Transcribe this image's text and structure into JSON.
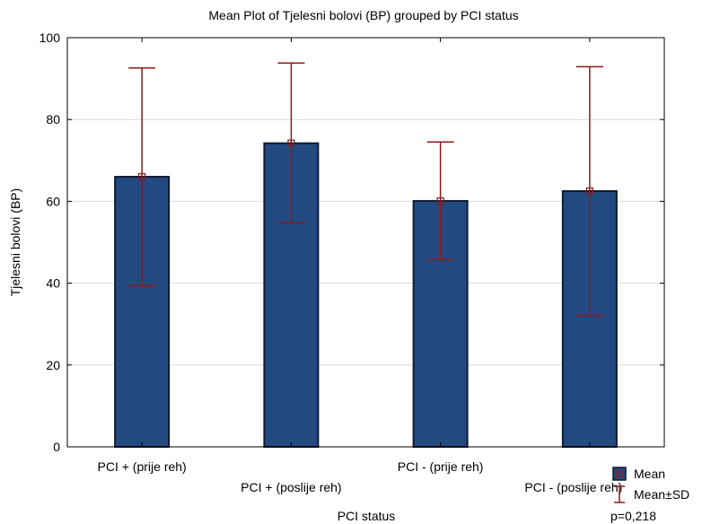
{
  "chart_data": {
    "type": "bar",
    "title": "Mean Plot of Tjelesni bolovi (BP) grouped by  PCI status",
    "xlabel": "PCI status",
    "ylabel": "Tjelesni bolovi (BP)",
    "ylim": [
      0,
      100
    ],
    "yticks": [
      "0",
      "20",
      "40",
      "60",
      "80",
      "100"
    ],
    "categories": [
      "PCI + (prije reh)",
      "PCI + (poslije reh)",
      "PCI - (prije reh)",
      "PCI - (poslije reh)"
    ],
    "values": [
      66,
      74.2,
      60.1,
      62.5
    ],
    "sd_lower": [
      39.4,
      54.7,
      45.8,
      32.1
    ],
    "sd_upper": [
      92.6,
      93.8,
      74.5,
      92.9
    ],
    "grid": true,
    "legend": {
      "position": "bottom-right",
      "items": [
        {
          "label": "Mean",
          "symbol": "mean-square-icon"
        },
        {
          "label": "Mean±SD",
          "symbol": "error-bar-icon"
        }
      ]
    },
    "annotation": "p=0,218",
    "colors": {
      "bar_fill": "#234a80",
      "bar_stroke": "#0d1a33",
      "error_bar": "#8b1a1a",
      "grid": "#d9d9d9"
    }
  }
}
